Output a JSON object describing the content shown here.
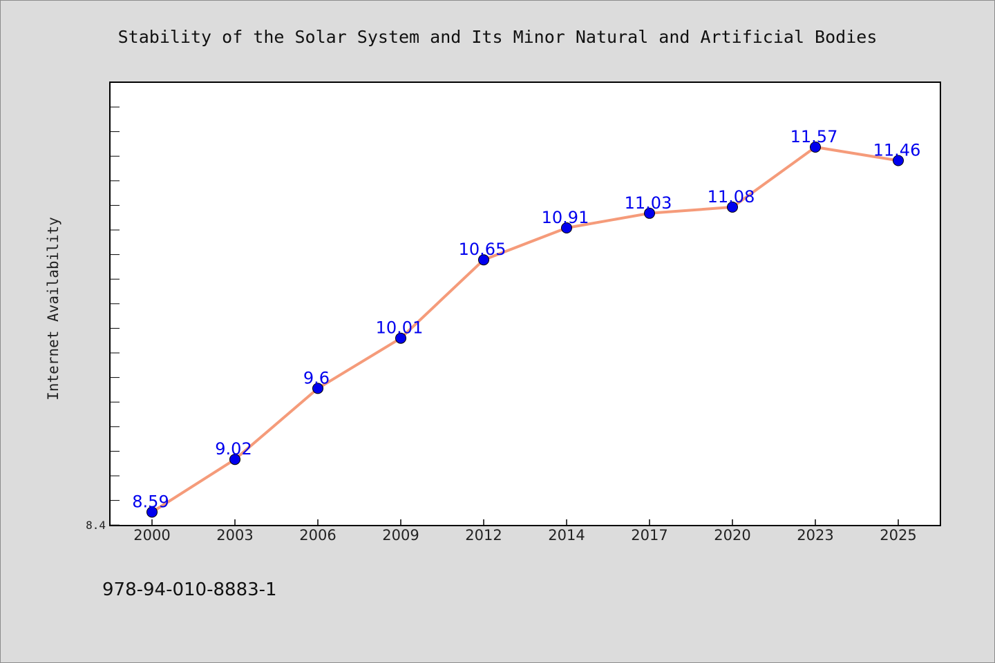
{
  "chart_data": {
    "type": "line",
    "title": "Stability of the Solar System and Its Minor Natural and Artificial Bodies",
    "ylabel": "Internet Availability",
    "xlabel": "",
    "categories": [
      "2000",
      "2003",
      "2006",
      "2009",
      "2012",
      "2014",
      "2017",
      "2020",
      "2023",
      "2025"
    ],
    "series": [
      {
        "values": [
          8.59,
          9.02,
          9.6,
          10.01,
          10.65,
          10.91,
          11.03,
          11.08,
          11.57,
          11.46
        ]
      }
    ],
    "data_labels": [
      "8.59",
      "9.02",
      "9.6",
      "10.01",
      "10.65",
      "10.91",
      "11.03",
      "11.08",
      "11.57",
      "11.46"
    ],
    "ylim": [
      8.48,
      12.1
    ],
    "yticks": [
      "8.4"
    ],
    "grid": false,
    "legend": "none",
    "colors": {
      "line": "#f59b7a",
      "marker": "#0000ee",
      "label": "#0000ee",
      "plot_bg": "#ffffff",
      "page_bg": "#dcdcdc"
    }
  },
  "footer": {
    "isbn": "978-94-010-8883-1"
  }
}
